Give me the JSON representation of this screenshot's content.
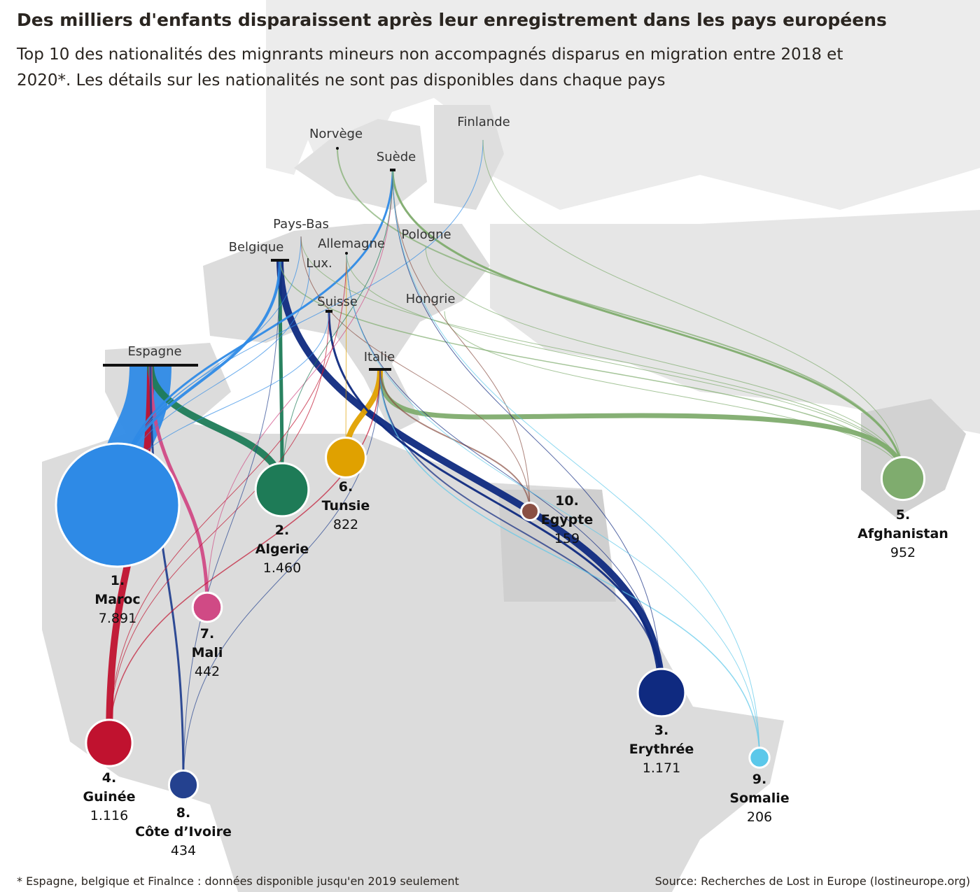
{
  "chart_data": {
    "type": "bubble-map",
    "title": "Des milliers d'enfants disparaissent après leur enregistrement dans les pays européens",
    "subtitle": "Top 10 des nationalités des mignrants mineurs non accompagnés disparus en migration entre 2018 et 2020*. Les détails sur les nationalités ne sont pas disponibles dans chaque pays",
    "categories": [
      "Maroc",
      "Algerie",
      "Erythrée",
      "Guinée",
      "Afghanistan",
      "Tunsie",
      "Mali",
      "Côte d’Ivoire",
      "Somalie",
      "Egypte"
    ],
    "ranks": [
      "1.",
      "2.",
      "3.",
      "4.",
      "5.",
      "6.",
      "7.",
      "8.",
      "9.",
      "10."
    ],
    "values": [
      7891,
      1460,
      1171,
      1116,
      952,
      822,
      442,
      434,
      206,
      159
    ],
    "value_labels": [
      "7.891",
      "1.460",
      "1.171",
      "1.116",
      "952",
      "822",
      "442",
      "434",
      "206",
      "159"
    ],
    "colors": [
      "#2e8ae6",
      "#1e7b57",
      "#0f2a80",
      "#c0122f",
      "#7fac6e",
      "#e0a100",
      "#d04a85",
      "#24418f",
      "#5bc8ea",
      "#8a5044"
    ],
    "origins": [
      "Norvège",
      "Finlande",
      "Suède",
      "Pays-Bas",
      "Allemagne",
      "Pologne",
      "Belgique",
      "Lux.",
      "Suisse",
      "Hongrie",
      "Espagne",
      "Italie"
    ],
    "footnote": "* Espagne, belgique et Finalnce : données disponible jusqu'en 2019 seulement",
    "source": "Source:  Recherches de Lost in Europe (lostineurope.org)"
  }
}
